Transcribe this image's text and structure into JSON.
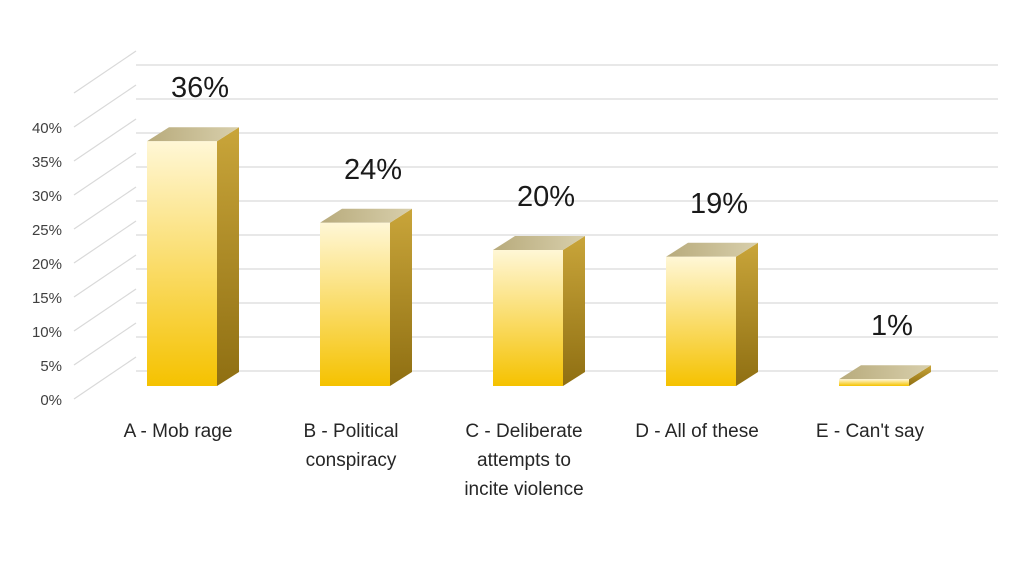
{
  "chart_data": {
    "type": "bar",
    "categories": [
      "A - Mob rage",
      "B - Political conspiracy",
      "C - Deliberate attempts to incite violence",
      "D - All of these",
      "E - Can't say"
    ],
    "category_lines": [
      [
        "A - Mob rage"
      ],
      [
        "B - Political",
        "conspiracy"
      ],
      [
        "C - Deliberate",
        "attempts to",
        "incite violence"
      ],
      [
        "D - All of these"
      ],
      [
        "E - Can't say"
      ]
    ],
    "values": [
      36,
      24,
      20,
      19,
      1
    ],
    "data_labels": [
      "36%",
      "24%",
      "20%",
      "19%",
      "1%"
    ],
    "yticks": [
      0,
      5,
      10,
      15,
      20,
      25,
      30,
      35,
      40
    ],
    "ytick_labels": [
      "0%",
      "5%",
      "10%",
      "15%",
      "20%",
      "25%",
      "30%",
      "35%",
      "40%"
    ],
    "ylim": [
      0,
      45
    ],
    "grid": true,
    "style": "3d-column",
    "colors": {
      "bar_front_light": "#fff7d6",
      "bar_front_dark": "#f5c200",
      "bar_side_light": "#c9a53a",
      "bar_side_dark": "#8f6f12",
      "bar_top": "#c7b98a",
      "grid": "#d9d9d9"
    }
  }
}
